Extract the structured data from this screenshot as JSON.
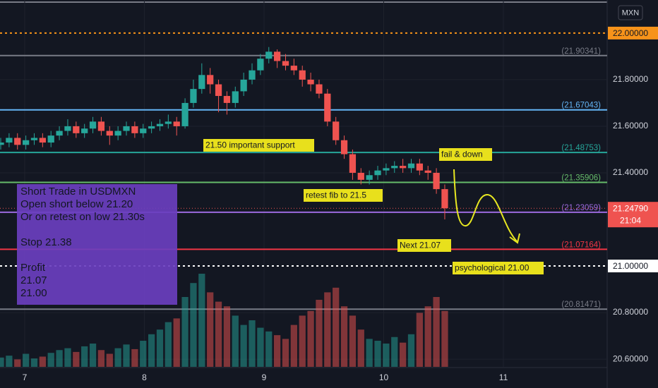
{
  "chart_data": {
    "type": "candlestick",
    "currency": "MXN",
    "up_color": "#26a69a",
    "down_color": "#ef5350",
    "grid": true,
    "x": [
      6.8,
      6.87,
      6.94,
      7.01,
      7.08,
      7.15,
      7.22,
      7.29,
      7.36,
      7.43,
      7.5,
      7.57,
      7.64,
      7.71,
      7.78,
      7.85,
      7.92,
      7.99,
      8.06,
      8.13,
      8.2,
      8.27,
      8.34,
      8.41,
      8.48,
      8.55,
      8.62,
      8.69,
      8.76,
      8.83,
      8.9,
      8.97,
      9.04,
      9.11,
      9.18,
      9.25,
      9.32,
      9.39,
      9.46,
      9.53,
      9.6,
      9.67,
      9.74,
      9.81,
      9.88,
      9.95,
      10.02,
      10.09,
      10.16,
      10.23,
      10.3,
      10.37,
      10.44,
      10.51
    ],
    "open": [
      21.52,
      21.53,
      21.55,
      21.52,
      21.54,
      21.55,
      21.53,
      21.56,
      21.58,
      21.6,
      21.57,
      21.59,
      21.62,
      21.58,
      21.56,
      21.58,
      21.6,
      21.57,
      21.59,
      21.6,
      21.61,
      21.62,
      21.6,
      21.7,
      21.76,
      21.82,
      21.78,
      21.73,
      21.7,
      21.75,
      21.8,
      21.84,
      21.89,
      21.92,
      21.88,
      21.86,
      21.84,
      21.8,
      21.78,
      21.74,
      21.62,
      21.54,
      21.48,
      21.4,
      21.37,
      21.39,
      21.41,
      21.42,
      21.43,
      21.42,
      21.44,
      21.41,
      21.4,
      21.33
    ],
    "high": [
      21.55,
      21.57,
      21.57,
      21.56,
      21.57,
      21.57,
      21.58,
      21.6,
      21.63,
      21.62,
      21.61,
      21.64,
      21.64,
      21.6,
      21.6,
      21.62,
      21.62,
      21.61,
      21.62,
      21.63,
      21.65,
      21.64,
      21.72,
      21.8,
      21.87,
      21.85,
      21.8,
      21.75,
      21.77,
      21.83,
      21.87,
      21.91,
      21.94,
      21.93,
      21.91,
      21.89,
      21.86,
      21.83,
      21.8,
      21.76,
      21.64,
      21.56,
      21.5,
      21.42,
      21.41,
      21.43,
      21.44,
      21.45,
      21.46,
      21.46,
      21.46,
      21.43,
      21.42,
      21.35
    ],
    "low": [
      21.5,
      21.51,
      21.5,
      21.5,
      21.52,
      21.51,
      21.51,
      21.54,
      21.56,
      21.55,
      21.55,
      21.57,
      21.56,
      21.52,
      21.54,
      21.56,
      21.55,
      21.55,
      21.57,
      21.58,
      21.59,
      21.56,
      21.59,
      21.68,
      21.74,
      21.74,
      21.66,
      21.65,
      21.68,
      21.73,
      21.78,
      21.82,
      21.87,
      21.85,
      21.84,
      21.82,
      21.77,
      21.75,
      21.72,
      21.6,
      21.52,
      21.46,
      21.37,
      21.35,
      21.35,
      21.37,
      21.39,
      21.4,
      21.4,
      21.4,
      21.39,
      21.37,
      21.31,
      21.2
    ],
    "close": [
      21.53,
      21.55,
      21.52,
      21.54,
      21.55,
      21.53,
      21.56,
      21.58,
      21.6,
      21.57,
      21.59,
      21.62,
      21.58,
      21.56,
      21.58,
      21.6,
      21.57,
      21.59,
      21.6,
      21.61,
      21.62,
      21.6,
      21.7,
      21.76,
      21.82,
      21.78,
      21.73,
      21.7,
      21.75,
      21.8,
      21.84,
      21.89,
      21.92,
      21.88,
      21.86,
      21.84,
      21.8,
      21.78,
      21.74,
      21.62,
      21.54,
      21.48,
      21.4,
      21.37,
      21.39,
      21.41,
      21.42,
      21.43,
      21.42,
      21.44,
      21.41,
      21.4,
      21.33,
      21.2479
    ],
    "volume": [
      10,
      12,
      8,
      14,
      9,
      11,
      15,
      18,
      20,
      16,
      22,
      25,
      18,
      14,
      20,
      24,
      19,
      28,
      35,
      40,
      48,
      52,
      75,
      90,
      100,
      80,
      70,
      65,
      55,
      45,
      50,
      42,
      38,
      34,
      30,
      45,
      55,
      60,
      72,
      80,
      85,
      65,
      55,
      40,
      30,
      28,
      25,
      32,
      26,
      35,
      58,
      65,
      75,
      60
    ],
    "xlim": [
      6.794,
      11.867
    ],
    "xticks": [
      7,
      8,
      9,
      10,
      11
    ],
    "ylim": [
      20.567,
      22.142
    ],
    "yticks": [
      {
        "value": 20.6,
        "label": "20.60000"
      },
      {
        "value": 20.8,
        "label": "20.80000"
      },
      {
        "value": 21.4,
        "label": "21.40000"
      },
      {
        "value": 21.6,
        "label": "21.60000"
      },
      {
        "value": 21.8,
        "label": "21.80000"
      }
    ],
    "levels": [
      {
        "value": 22.0,
        "label": "22.00000",
        "color": "#f7931a",
        "style": "dotted",
        "boxed": true
      },
      {
        "value": 21.90341,
        "label": "(21.90341)",
        "color": "#787b86",
        "style": "solid",
        "boxed": false
      },
      {
        "value": 21.67043,
        "label": "(21.67043)",
        "color": "#64b5f6",
        "style": "solid",
        "boxed": false
      },
      {
        "value": 21.48753,
        "label": "(21.48753)",
        "color": "#26a69a",
        "style": "solid",
        "boxed": false
      },
      {
        "value": 21.35906,
        "label": "(21.35906)",
        "color": "#66bb6a",
        "style": "solid",
        "boxed": false
      },
      {
        "value": 21.23059,
        "label": "(21.23059)",
        "color": "#9c6ade",
        "style": "solid",
        "boxed": false
      },
      {
        "value": 21.07164,
        "label": "(21.07164)",
        "color": "#f23645",
        "style": "solid",
        "boxed": false
      },
      {
        "value": 21.0,
        "label": "21.00000",
        "color": "#ffffff",
        "style": "dotted",
        "boxed": true
      },
      {
        "value": 20.81471,
        "label": "(20.81471)",
        "color": "#787b86",
        "style": "solid",
        "boxed": false
      }
    ],
    "last_price": {
      "value": 21.2479,
      "label": "21.24790",
      "countdown": "21:04"
    },
    "annotations": [
      "21.50 important support",
      "fail & down",
      "retest fib to 21.5",
      "Next 21.07",
      "psychological 21.00"
    ],
    "note": [
      [
        "Short Trade in USDMXN",
        "Open short below 21.20",
        "Or on retest on low 21.30s"
      ],
      [
        "Stop 21.38"
      ],
      [
        "Profit",
        "21.07",
        "21.00"
      ]
    ]
  }
}
